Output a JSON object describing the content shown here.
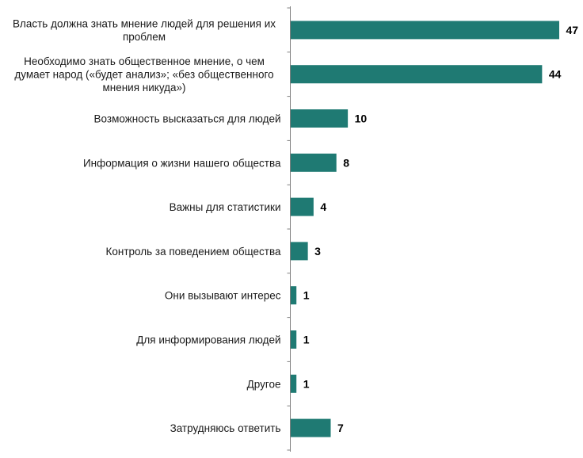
{
  "chart_data": {
    "type": "bar",
    "orientation": "horizontal",
    "categories": [
      "Власть должна знать мнение людей для решения их проблем",
      "Необходимо знать общественное мнение, о чем думает народ («будет анализ»; «без общественного мнения никуда»)",
      "Возможность высказаться для людей",
      "Информация о жизни нашего общества",
      "Важны для статистики",
      "Контроль за поведением общества",
      "Они вызывают интерес",
      "Для информирования людей",
      "Другое",
      "Затрудняюсь ответить"
    ],
    "category_lines": [
      [
        "Власть должна знать мнение людей для решения их",
        "проблем"
      ],
      [
        "Необходимо знать общественное мнение, о чем",
        "думает народ («будет анализ»; «без общественного",
        "мнения никуда»)"
      ],
      [
        "Возможность высказаться для людей"
      ],
      [
        "Информация о жизни нашего общества"
      ],
      [
        "Важны для статистики"
      ],
      [
        "Контроль за поведением общества"
      ],
      [
        "Они вызывают интерес"
      ],
      [
        "Для информирования людей"
      ],
      [
        "Другое"
      ],
      [
        "Затрудняюсь ответить"
      ]
    ],
    "values": [
      47,
      44,
      10,
      8,
      4,
      3,
      1,
      1,
      1,
      7
    ],
    "xlim": [
      0,
      50
    ],
    "bar_color": "#1f7a73",
    "grid": false,
    "legend": "none"
  }
}
